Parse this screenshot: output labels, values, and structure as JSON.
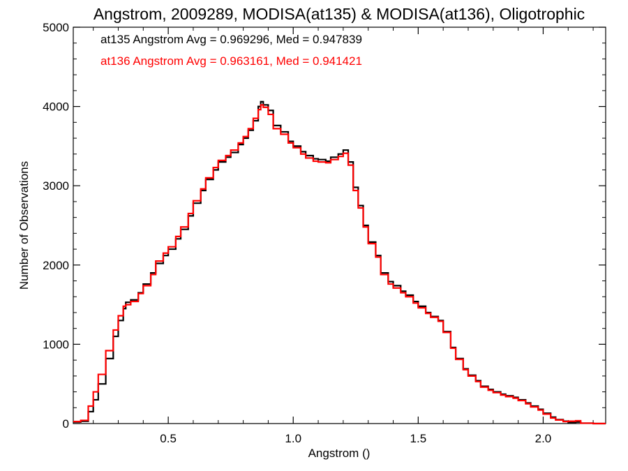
{
  "chart_data": {
    "type": "line",
    "title": "Angstrom, 2009289, MODISA(at135) & MODISA(at136), Oligotrophic",
    "xlabel": "Angstrom ()",
    "ylabel": "Number of Observations",
    "xlim": [
      0.12,
      2.25
    ],
    "ylim": [
      0,
      5000
    ],
    "x_ticks": [
      "0.5",
      "1.0",
      "1.5",
      "2.0"
    ],
    "x_tick_values": [
      0.5,
      1.0,
      1.5,
      2.0
    ],
    "y_ticks": [
      "0",
      "1000",
      "2000",
      "3000",
      "4000",
      "5000"
    ],
    "y_tick_values": [
      0,
      1000,
      2000,
      3000,
      4000,
      5000
    ],
    "grid": false,
    "annotations": [
      {
        "text": "at135 Angstrom Avg = 0.969296, Med = 0.947839",
        "color": "#000000"
      },
      {
        "text": "at136 Angstrom Avg = 0.963161, Med = 0.941421",
        "color": "#ff0000"
      }
    ],
    "series": [
      {
        "color": "#000000",
        "step": true,
        "x": [
          0.12,
          0.15,
          0.18,
          0.2,
          0.22,
          0.25,
          0.28,
          0.3,
          0.32,
          0.33,
          0.35,
          0.38,
          0.4,
          0.43,
          0.45,
          0.48,
          0.5,
          0.53,
          0.55,
          0.58,
          0.6,
          0.63,
          0.65,
          0.68,
          0.7,
          0.73,
          0.75,
          0.78,
          0.8,
          0.82,
          0.84,
          0.86,
          0.87,
          0.88,
          0.9,
          0.92,
          0.95,
          0.98,
          1.0,
          1.03,
          1.05,
          1.08,
          1.1,
          1.13,
          1.15,
          1.18,
          1.2,
          1.22,
          1.24,
          1.26,
          1.28,
          1.3,
          1.33,
          1.35,
          1.38,
          1.4,
          1.43,
          1.45,
          1.48,
          1.5,
          1.53,
          1.55,
          1.58,
          1.6,
          1.63,
          1.65,
          1.68,
          1.7,
          1.73,
          1.75,
          1.78,
          1.8,
          1.83,
          1.85,
          1.88,
          1.9,
          1.93,
          1.95,
          1.98,
          2.0,
          2.03,
          2.05,
          2.08,
          2.1,
          2.13,
          2.15,
          2.2,
          2.25
        ],
        "y": [
          20,
          30,
          150,
          300,
          500,
          820,
          1100,
          1300,
          1450,
          1530,
          1560,
          1650,
          1760,
          1900,
          2020,
          2120,
          2200,
          2330,
          2450,
          2620,
          2780,
          2940,
          3080,
          3200,
          3300,
          3360,
          3420,
          3520,
          3600,
          3700,
          3820,
          4000,
          4060,
          4020,
          3950,
          3760,
          3680,
          3560,
          3500,
          3430,
          3380,
          3340,
          3330,
          3310,
          3360,
          3400,
          3450,
          3300,
          2980,
          2750,
          2500,
          2290,
          2120,
          1900,
          1790,
          1740,
          1670,
          1620,
          1540,
          1480,
          1400,
          1350,
          1300,
          1160,
          960,
          820,
          690,
          610,
          540,
          470,
          430,
          400,
          370,
          350,
          330,
          300,
          260,
          220,
          180,
          130,
          80,
          50,
          30,
          15,
          20,
          5,
          0,
          0
        ]
      },
      {
        "color": "#ff0000",
        "step": true,
        "x": [
          0.12,
          0.15,
          0.18,
          0.2,
          0.22,
          0.25,
          0.28,
          0.3,
          0.32,
          0.33,
          0.35,
          0.38,
          0.4,
          0.43,
          0.45,
          0.48,
          0.5,
          0.53,
          0.55,
          0.58,
          0.6,
          0.63,
          0.65,
          0.68,
          0.7,
          0.73,
          0.75,
          0.78,
          0.8,
          0.82,
          0.84,
          0.86,
          0.87,
          0.88,
          0.9,
          0.92,
          0.95,
          0.98,
          1.0,
          1.03,
          1.05,
          1.08,
          1.1,
          1.13,
          1.15,
          1.18,
          1.2,
          1.22,
          1.24,
          1.26,
          1.28,
          1.3,
          1.33,
          1.35,
          1.38,
          1.4,
          1.43,
          1.45,
          1.48,
          1.5,
          1.53,
          1.55,
          1.58,
          1.6,
          1.63,
          1.65,
          1.68,
          1.7,
          1.73,
          1.75,
          1.78,
          1.8,
          1.83,
          1.85,
          1.88,
          1.9,
          1.93,
          1.95,
          1.98,
          2.0,
          2.03,
          2.05,
          2.08,
          2.1,
          2.13,
          2.15,
          2.2,
          2.25
        ],
        "y": [
          25,
          40,
          220,
          400,
          620,
          920,
          1180,
          1360,
          1480,
          1500,
          1540,
          1640,
          1740,
          1880,
          2050,
          2150,
          2230,
          2360,
          2480,
          2650,
          2810,
          2960,
          3100,
          3230,
          3320,
          3380,
          3450,
          3540,
          3620,
          3720,
          3850,
          3960,
          4020,
          3990,
          3900,
          3720,
          3650,
          3540,
          3480,
          3400,
          3350,
          3310,
          3300,
          3290,
          3330,
          3370,
          3410,
          3260,
          2940,
          2720,
          2480,
          2270,
          2100,
          1880,
          1760,
          1710,
          1650,
          1600,
          1520,
          1460,
          1390,
          1340,
          1290,
          1150,
          950,
          810,
          680,
          600,
          530,
          460,
          420,
          390,
          360,
          340,
          320,
          290,
          250,
          210,
          170,
          120,
          70,
          45,
          25,
          30,
          35,
          5,
          0,
          0
        ]
      }
    ]
  }
}
